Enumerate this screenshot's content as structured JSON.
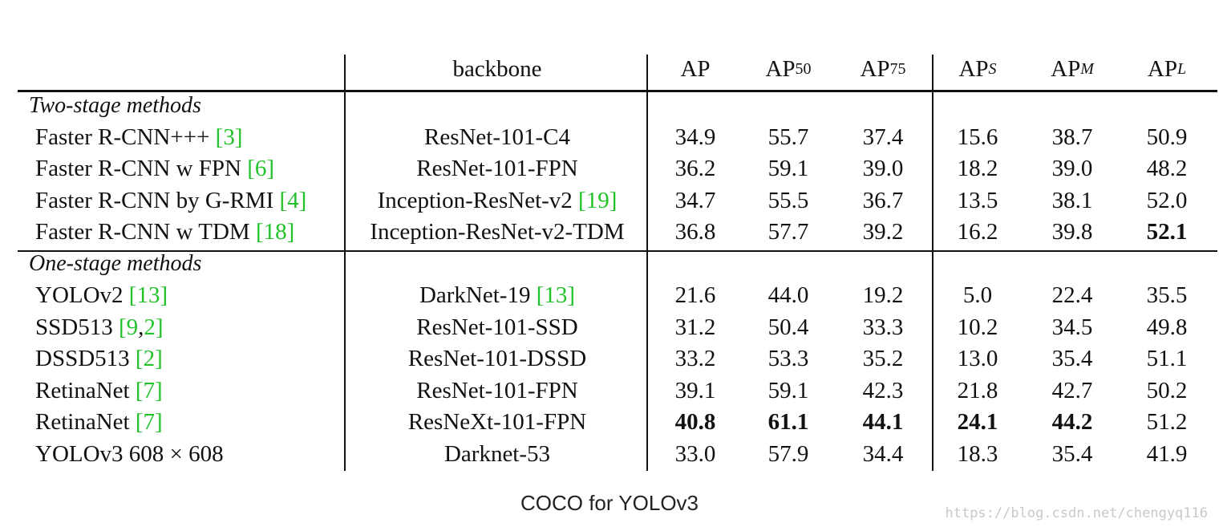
{
  "header": {
    "backbone": "backbone",
    "metrics": [
      {
        "base": "AP",
        "sub": "",
        "italic": false
      },
      {
        "base": "AP",
        "sub": "50",
        "italic": false
      },
      {
        "base": "AP",
        "sub": "75",
        "italic": false
      },
      {
        "base": "AP",
        "sub": "S",
        "italic": true
      },
      {
        "base": "AP",
        "sub": "M",
        "italic": true
      },
      {
        "base": "AP",
        "sub": "L",
        "italic": true
      }
    ]
  },
  "sections": [
    {
      "title": "Two-stage methods",
      "rows": [
        {
          "method": "Faster R-CNN+++",
          "refs": [
            "3"
          ],
          "backbone": "ResNet-101-C4",
          "backbone_refs": [],
          "values": [
            "34.9",
            "55.7",
            "37.4",
            "15.6",
            "38.7",
            "50.9"
          ],
          "bold": []
        },
        {
          "method": "Faster R-CNN w FPN",
          "refs": [
            "6"
          ],
          "backbone": "ResNet-101-FPN",
          "backbone_refs": [],
          "values": [
            "36.2",
            "59.1",
            "39.0",
            "18.2",
            "39.0",
            "48.2"
          ],
          "bold": []
        },
        {
          "method": "Faster R-CNN by G-RMI",
          "refs": [
            "4"
          ],
          "backbone": "Inception-ResNet-v2",
          "backbone_refs": [
            "19"
          ],
          "values": [
            "34.7",
            "55.5",
            "36.7",
            "13.5",
            "38.1",
            "52.0"
          ],
          "bold": []
        },
        {
          "method": "Faster R-CNN w TDM",
          "refs": [
            "18"
          ],
          "backbone": "Inception-ResNet-v2-TDM",
          "backbone_refs": [],
          "values": [
            "36.8",
            "57.7",
            "39.2",
            "16.2",
            "39.8",
            "52.1"
          ],
          "bold": [
            5
          ]
        }
      ]
    },
    {
      "title": "One-stage methods",
      "rows": [
        {
          "method": "YOLOv2",
          "refs": [
            "13"
          ],
          "backbone": "DarkNet-19",
          "backbone_refs": [
            "13"
          ],
          "values": [
            "21.6",
            "44.0",
            "19.2",
            "5.0",
            "22.4",
            "35.5"
          ],
          "bold": []
        },
        {
          "method": "SSD513",
          "refs": [
            "9",
            "2"
          ],
          "backbone": "ResNet-101-SSD",
          "backbone_refs": [],
          "values": [
            "31.2",
            "50.4",
            "33.3",
            "10.2",
            "34.5",
            "49.8"
          ],
          "bold": []
        },
        {
          "method": "DSSD513",
          "refs": [
            "2"
          ],
          "backbone": "ResNet-101-DSSD",
          "backbone_refs": [],
          "values": [
            "33.2",
            "53.3",
            "35.2",
            "13.0",
            "35.4",
            "51.1"
          ],
          "bold": []
        },
        {
          "method": "RetinaNet",
          "refs": [
            "7"
          ],
          "backbone": "ResNet-101-FPN",
          "backbone_refs": [],
          "values": [
            "39.1",
            "59.1",
            "42.3",
            "21.8",
            "42.7",
            "50.2"
          ],
          "bold": []
        },
        {
          "method": "RetinaNet",
          "refs": [
            "7"
          ],
          "backbone": "ResNeXt-101-FPN",
          "backbone_refs": [],
          "values": [
            "40.8",
            "61.1",
            "44.1",
            "24.1",
            "44.2",
            "51.2"
          ],
          "bold": [
            0,
            1,
            2,
            3,
            4
          ]
        },
        {
          "method": "YOLOv3 608 × 608",
          "refs": [],
          "backbone": "Darknet-53",
          "backbone_refs": [],
          "values": [
            "33.0",
            "57.9",
            "34.4",
            "18.3",
            "35.4",
            "41.9"
          ],
          "bold": []
        }
      ]
    }
  ],
  "caption": "COCO for YOLOv3",
  "watermark": "https://blog.csdn.net/chengyq116"
}
